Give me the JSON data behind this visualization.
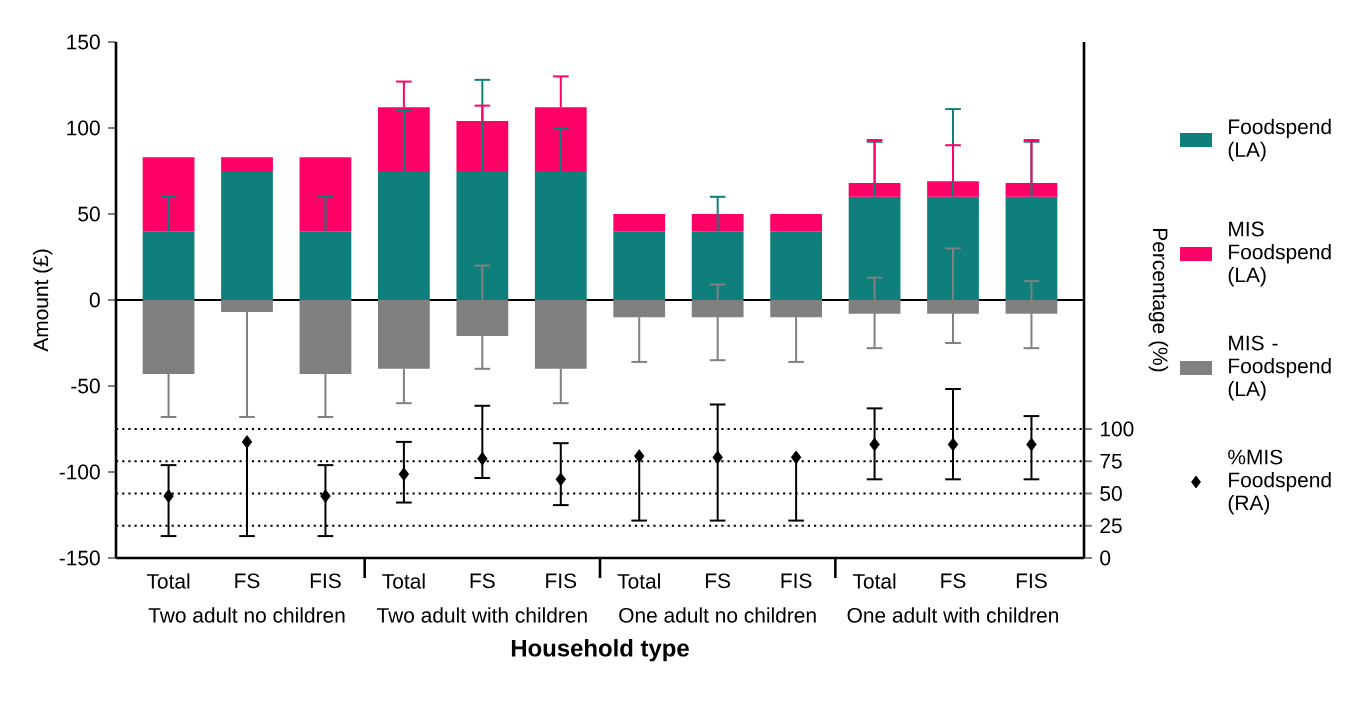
{
  "chart_data": {
    "type": "bar",
    "stacked": true,
    "ylabel": "Amount (£)",
    "y2label": "Percentage (%)",
    "xlabel": "Household type",
    "categories": [
      "Total",
      "FS",
      "FIS",
      "Total",
      "FS",
      "FIS",
      "Total",
      "FS",
      "FIS",
      "Total",
      "FS",
      "FIS"
    ],
    "ylim": [
      -150,
      150
    ],
    "yticks": [
      -150,
      -100,
      -50,
      0,
      50,
      100,
      150
    ],
    "y2lim": [
      0,
      400
    ],
    "y2ticks": [
      0,
      25,
      50,
      75,
      100
    ],
    "series": [
      {
        "name": "Foodspend (LA)",
        "color": "#0f7f7b",
        "values": [
          40,
          75,
          40,
          75,
          75,
          75,
          40,
          40,
          40,
          60,
          60,
          60
        ],
        "errors": [
          [
            40,
            60
          ],
          null,
          [
            40,
            60
          ],
          [
            75,
            110
          ],
          [
            75,
            128
          ],
          [
            75,
            100
          ],
          null,
          [
            40,
            60
          ],
          null,
          [
            60,
            92
          ],
          [
            60,
            111
          ],
          [
            60,
            92
          ]
        ]
      },
      {
        "name": "MIS Foodspend (LA)",
        "color": "#ff0066",
        "values": [
          43,
          8,
          43,
          37,
          29,
          37,
          10,
          10,
          10,
          8,
          9,
          8
        ],
        "errors": [
          null,
          null,
          null,
          [
            112,
            127
          ],
          [
            104,
            113
          ],
          [
            112,
            130
          ],
          null,
          null,
          null,
          [
            68,
            93
          ],
          [
            69,
            90
          ],
          [
            68,
            93
          ]
        ]
      },
      {
        "name": "MIS - Foodspend (LA)",
        "color": "#808080",
        "values": [
          -43,
          -7,
          -43,
          -40,
          -21,
          -40,
          -10,
          -10,
          -10,
          -8,
          -8,
          -8
        ],
        "errors": [
          [
            -68,
            -43
          ],
          [
            -68,
            -7
          ],
          [
            -68,
            -43
          ],
          [
            -60,
            -40
          ],
          [
            -40,
            20
          ],
          [
            -60,
            -40
          ],
          [
            -36,
            -10
          ],
          [
            -35,
            9
          ],
          [
            -36,
            -10
          ],
          [
            -28,
            13
          ],
          [
            -25,
            30
          ],
          [
            -28,
            11
          ]
        ]
      },
      {
        "name": "%MIS Foodspend (RA)",
        "type": "scatter",
        "axis": "y2",
        "color": "#000000",
        "values": [
          48,
          90,
          48,
          65,
          77,
          61,
          79,
          78,
          78,
          88,
          88,
          88
        ],
        "errors": [
          [
            17,
            72
          ],
          [
            17,
            90
          ],
          [
            17,
            72
          ],
          [
            43,
            90
          ],
          [
            62,
            118
          ],
          [
            41,
            89
          ],
          [
            29,
            79
          ],
          [
            29,
            119
          ],
          [
            29,
            78
          ],
          [
            61,
            116
          ],
          [
            61,
            131
          ],
          [
            61,
            110
          ]
        ]
      }
    ],
    "ref_lines": [
      {
        "axis": "y",
        "value": 0,
        "color": "#000000",
        "line_style": "solid"
      },
      {
        "axis": "y2",
        "value": 25,
        "color": "#000000",
        "line_style": "dotted"
      },
      {
        "axis": "y2",
        "value": 50,
        "color": "#000000",
        "line_style": "dotted"
      },
      {
        "axis": "y2",
        "value": 75,
        "color": "#000000",
        "line_style": "dotted"
      },
      {
        "axis": "y2",
        "value": 100,
        "color": "#000000",
        "line_style": "dotted"
      }
    ],
    "annotations": [
      "Two adult no children",
      "Two adult with children",
      "One adult no children",
      "One adult with children"
    ],
    "marker": "diamond",
    "legend": "right",
    "grid": false
  }
}
